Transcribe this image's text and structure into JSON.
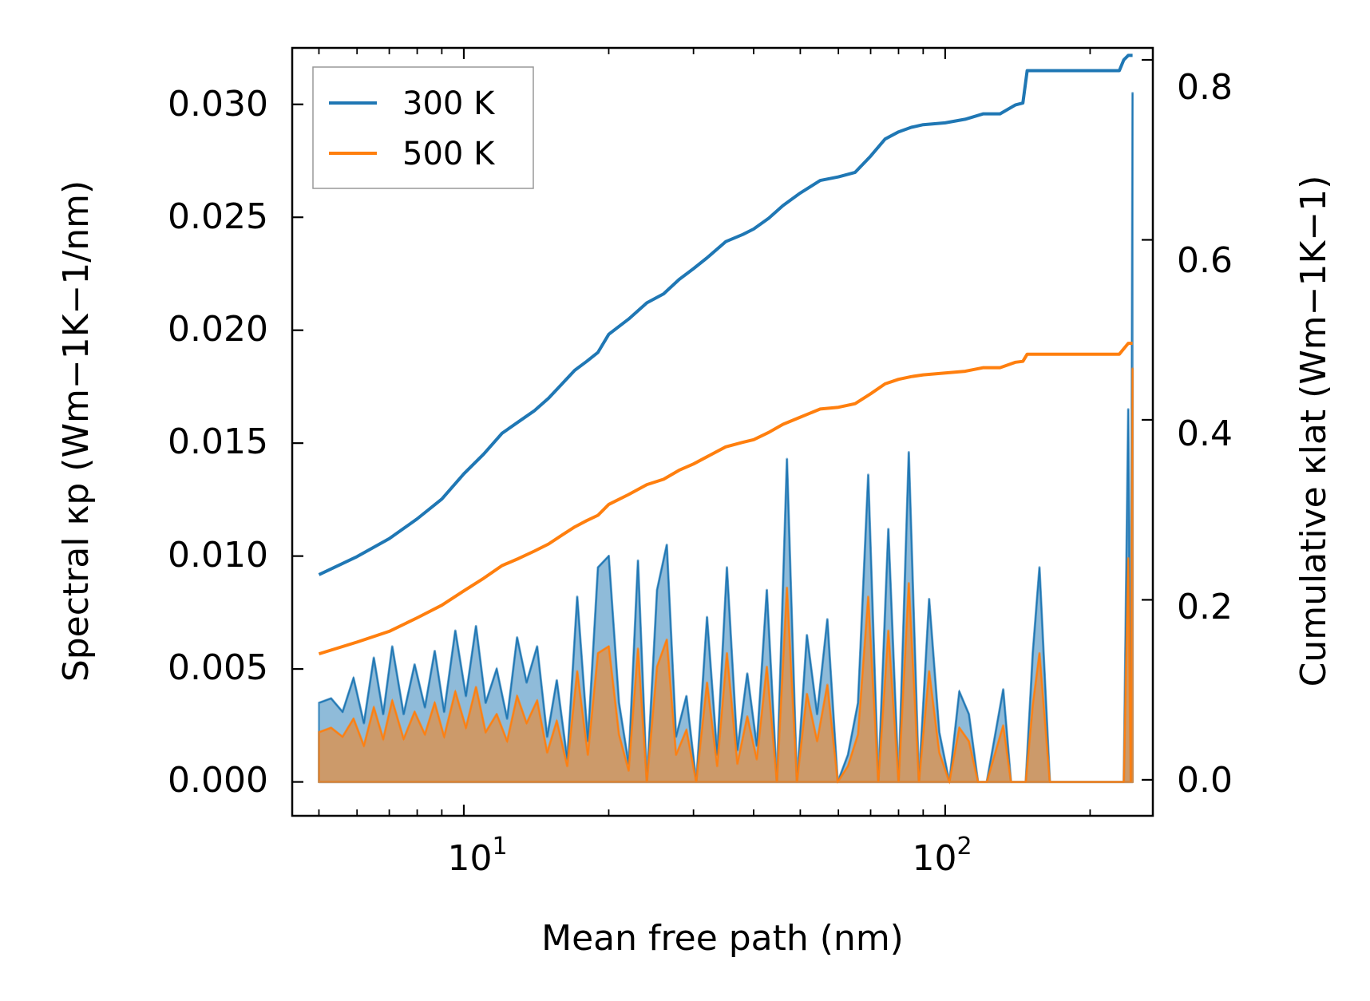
{
  "chart_data": {
    "type": "line",
    "xscale": "log",
    "xlabel": "Mean free path (nm)",
    "ylabel_left": "Spectral κp (Wm−1K−1/nm)",
    "ylabel_right": "Cumulative κlat (Wm−1K−1)",
    "xlim": [
      4.4,
      270
    ],
    "ylim_left": [
      -0.0015,
      0.0325
    ],
    "ylim_right": [
      -0.04,
      0.8133
    ],
    "x_ticks": [
      {
        "value": 10,
        "base": "10",
        "exp": "1"
      },
      {
        "value": 100,
        "base": "10",
        "exp": "2"
      }
    ],
    "y_left_ticks": [
      {
        "value": 0.0,
        "label": "0.000"
      },
      {
        "value": 0.005,
        "label": "0.005"
      },
      {
        "value": 0.01,
        "label": "0.010"
      },
      {
        "value": 0.015,
        "label": "0.015"
      },
      {
        "value": 0.02,
        "label": "0.020"
      },
      {
        "value": 0.025,
        "label": "0.025"
      },
      {
        "value": 0.03,
        "label": "0.030"
      }
    ],
    "y_right_ticks": [
      {
        "value": 0.0,
        "label": "0.0"
      },
      {
        "value": 0.2,
        "label": "0.2"
      },
      {
        "value": 0.4,
        "label": "0.4"
      },
      {
        "value": 0.6,
        "label": "0.6"
      },
      {
        "value": 0.8,
        "label": "0.8"
      }
    ],
    "legend": {
      "location": "upper-left",
      "entries": [
        "300 K",
        "500 K"
      ]
    },
    "colors": {
      "series_300": "#1f77b4",
      "series_500": "#ff7f0e",
      "fill_300": "#1f77b4",
      "fill_500": "#ff7f0e",
      "overlap": "#c7986f"
    },
    "series": [
      {
        "name": "300 K",
        "spectral": {
          "x": [
            5.0,
            5.3,
            5.6,
            5.9,
            6.2,
            6.5,
            6.8,
            7.1,
            7.5,
            7.9,
            8.3,
            8.7,
            9.1,
            9.6,
            10.1,
            10.6,
            11.1,
            11.7,
            12.3,
            12.9,
            13.5,
            14.2,
            14.9,
            15.6,
            16.4,
            17.2,
            18.1,
            19.0,
            20.0,
            21.0,
            22.0,
            23.0,
            24.0,
            25.2,
            26.4,
            27.6,
            29.0,
            30.4,
            32.0,
            33.6,
            35.2,
            37.0,
            38.8,
            40.6,
            42.6,
            44.7,
            46.9,
            49.2,
            51.6,
            54.2,
            56.9,
            59.8,
            62.8,
            65.9,
            69.2,
            72.6,
            76.2,
            80.0,
            84.0,
            88.2,
            92.6,
            97.2,
            102,
            107,
            112,
            117,
            122,
            132,
            137,
            142,
            147,
            152,
            157,
            165,
            175,
            185,
            195,
            210,
            225,
            235,
            240,
            243,
            245
          ],
          "y": [
            0.0035,
            0.0037,
            0.0031,
            0.0046,
            0.0026,
            0.0055,
            0.003,
            0.006,
            0.003,
            0.0052,
            0.0033,
            0.0058,
            0.0031,
            0.0067,
            0.0038,
            0.0069,
            0.0035,
            0.005,
            0.0028,
            0.0064,
            0.0044,
            0.006,
            0.002,
            0.0045,
            0.001,
            0.0082,
            0.0018,
            0.0095,
            0.01,
            0.0035,
            0.0008,
            0.0098,
            0.0,
            0.0085,
            0.0105,
            0.002,
            0.0038,
            0.0,
            0.0073,
            0.0012,
            0.0095,
            0.0014,
            0.0048,
            0.0016,
            0.0085,
            0.0,
            0.0143,
            0.0,
            0.0065,
            0.003,
            0.0072,
            0.0,
            0.0012,
            0.0035,
            0.0136,
            0.0,
            0.0112,
            0.0,
            0.0146,
            0.0,
            0.0081,
            0.0022,
            0.0,
            0.004,
            0.003,
            0.0,
            0.0,
            0.0041,
            0.0,
            0.0,
            0.0,
            0.0057,
            0.0095,
            0.0,
            0.0,
            0.0,
            0.0,
            0.0,
            0.0,
            0.0,
            0.0165,
            0.0,
            0.0305
          ]
        },
        "cumulative": {
          "x": [
            5.0,
            6.0,
            7.0,
            8.0,
            9.0,
            10.0,
            11.0,
            12.0,
            13.0,
            14.0,
            15.0,
            16.0,
            17.0,
            18.0,
            19.0,
            20.0,
            22.0,
            24.0,
            26.0,
            28.0,
            30.0,
            32.0,
            35.0,
            38.0,
            40.0,
            43.0,
            46.0,
            50.0,
            55.0,
            60.0,
            65.0,
            70.0,
            75.0,
            80.0,
            85.0,
            90.0,
            100.0,
            110.0,
            120.0,
            130.0,
            140.0,
            145.0,
            148.0,
            150.0,
            160.0,
            180.0,
            200.0,
            230.0,
            235.0,
            240.0,
            245.0
          ],
          "y": [
            0.228,
            0.248,
            0.268,
            0.29,
            0.312,
            0.34,
            0.362,
            0.385,
            0.398,
            0.41,
            0.424,
            0.44,
            0.455,
            0.465,
            0.475,
            0.495,
            0.512,
            0.53,
            0.54,
            0.556,
            0.568,
            0.58,
            0.598,
            0.606,
            0.612,
            0.624,
            0.638,
            0.652,
            0.666,
            0.67,
            0.675,
            0.693,
            0.712,
            0.72,
            0.725,
            0.728,
            0.73,
            0.734,
            0.74,
            0.74,
            0.75,
            0.752,
            0.788,
            0.788,
            0.788,
            0.788,
            0.788,
            0.788,
            0.8,
            0.805,
            0.805
          ]
        }
      },
      {
        "name": "500 K",
        "spectral": {
          "x": [
            5.0,
            5.3,
            5.6,
            5.9,
            6.2,
            6.5,
            6.8,
            7.1,
            7.5,
            7.9,
            8.3,
            8.7,
            9.1,
            9.6,
            10.1,
            10.6,
            11.1,
            11.7,
            12.3,
            12.9,
            13.5,
            14.2,
            14.9,
            15.6,
            16.4,
            17.2,
            18.1,
            19.0,
            20.0,
            21.0,
            22.0,
            23.0,
            24.0,
            25.2,
            26.4,
            27.6,
            29.0,
            30.4,
            32.0,
            33.6,
            35.2,
            37.0,
            38.8,
            40.6,
            42.6,
            44.7,
            46.9,
            49.2,
            51.6,
            54.2,
            56.9,
            59.8,
            62.8,
            65.9,
            69.2,
            72.6,
            76.2,
            80.0,
            84.0,
            88.2,
            92.6,
            97.2,
            102,
            107,
            112,
            117,
            122,
            132,
            137,
            142,
            147,
            152,
            157,
            165,
            175,
            185,
            195,
            210,
            225,
            235,
            240,
            243,
            245
          ],
          "y": [
            0.0022,
            0.0024,
            0.002,
            0.0028,
            0.0016,
            0.0033,
            0.0019,
            0.0036,
            0.0019,
            0.0031,
            0.0021,
            0.0035,
            0.002,
            0.004,
            0.0024,
            0.0042,
            0.0022,
            0.003,
            0.0018,
            0.0038,
            0.0026,
            0.0036,
            0.0013,
            0.0027,
            0.0007,
            0.0049,
            0.0012,
            0.0057,
            0.006,
            0.0021,
            0.0005,
            0.0059,
            0.0,
            0.0051,
            0.0063,
            0.0012,
            0.0023,
            0.0,
            0.0044,
            0.0007,
            0.0057,
            0.0008,
            0.0029,
            0.001,
            0.0051,
            0.0,
            0.0086,
            0.0,
            0.0039,
            0.0018,
            0.0043,
            0.0,
            0.0007,
            0.0021,
            0.0082,
            0.0,
            0.0067,
            0.0,
            0.0088,
            0.0,
            0.0049,
            0.0013,
            0.0,
            0.0024,
            0.0018,
            0.0,
            0.0,
            0.0025,
            0.0,
            0.0,
            0.0,
            0.0034,
            0.0057,
            0.0,
            0.0,
            0.0,
            0.0,
            0.0,
            0.0,
            0.0,
            0.0099,
            0.0,
            0.0183
          ]
        },
        "cumulative": {
          "x": [
            5.0,
            6.0,
            7.0,
            8.0,
            9.0,
            10.0,
            11.0,
            12.0,
            13.0,
            14.0,
            15.0,
            16.0,
            17.0,
            18.0,
            19.0,
            20.0,
            22.0,
            24.0,
            26.0,
            28.0,
            30.0,
            32.0,
            35.0,
            38.0,
            40.0,
            43.0,
            46.0,
            50.0,
            55.0,
            60.0,
            65.0,
            70.0,
            75.0,
            80.0,
            85.0,
            90.0,
            100.0,
            110.0,
            120.0,
            130.0,
            140.0,
            145.0,
            148.0,
            150.0,
            160.0,
            180.0,
            200.0,
            230.0,
            235.0,
            240.0,
            245.0
          ],
          "y": [
            0.14,
            0.153,
            0.165,
            0.18,
            0.194,
            0.21,
            0.224,
            0.238,
            0.246,
            0.254,
            0.262,
            0.272,
            0.281,
            0.288,
            0.294,
            0.306,
            0.317,
            0.328,
            0.334,
            0.344,
            0.351,
            0.359,
            0.37,
            0.375,
            0.378,
            0.386,
            0.395,
            0.403,
            0.412,
            0.414,
            0.418,
            0.429,
            0.44,
            0.445,
            0.448,
            0.45,
            0.452,
            0.454,
            0.458,
            0.458,
            0.464,
            0.465,
            0.473,
            0.473,
            0.473,
            0.473,
            0.473,
            0.473,
            0.479,
            0.485,
            0.485
          ]
        }
      }
    ]
  }
}
